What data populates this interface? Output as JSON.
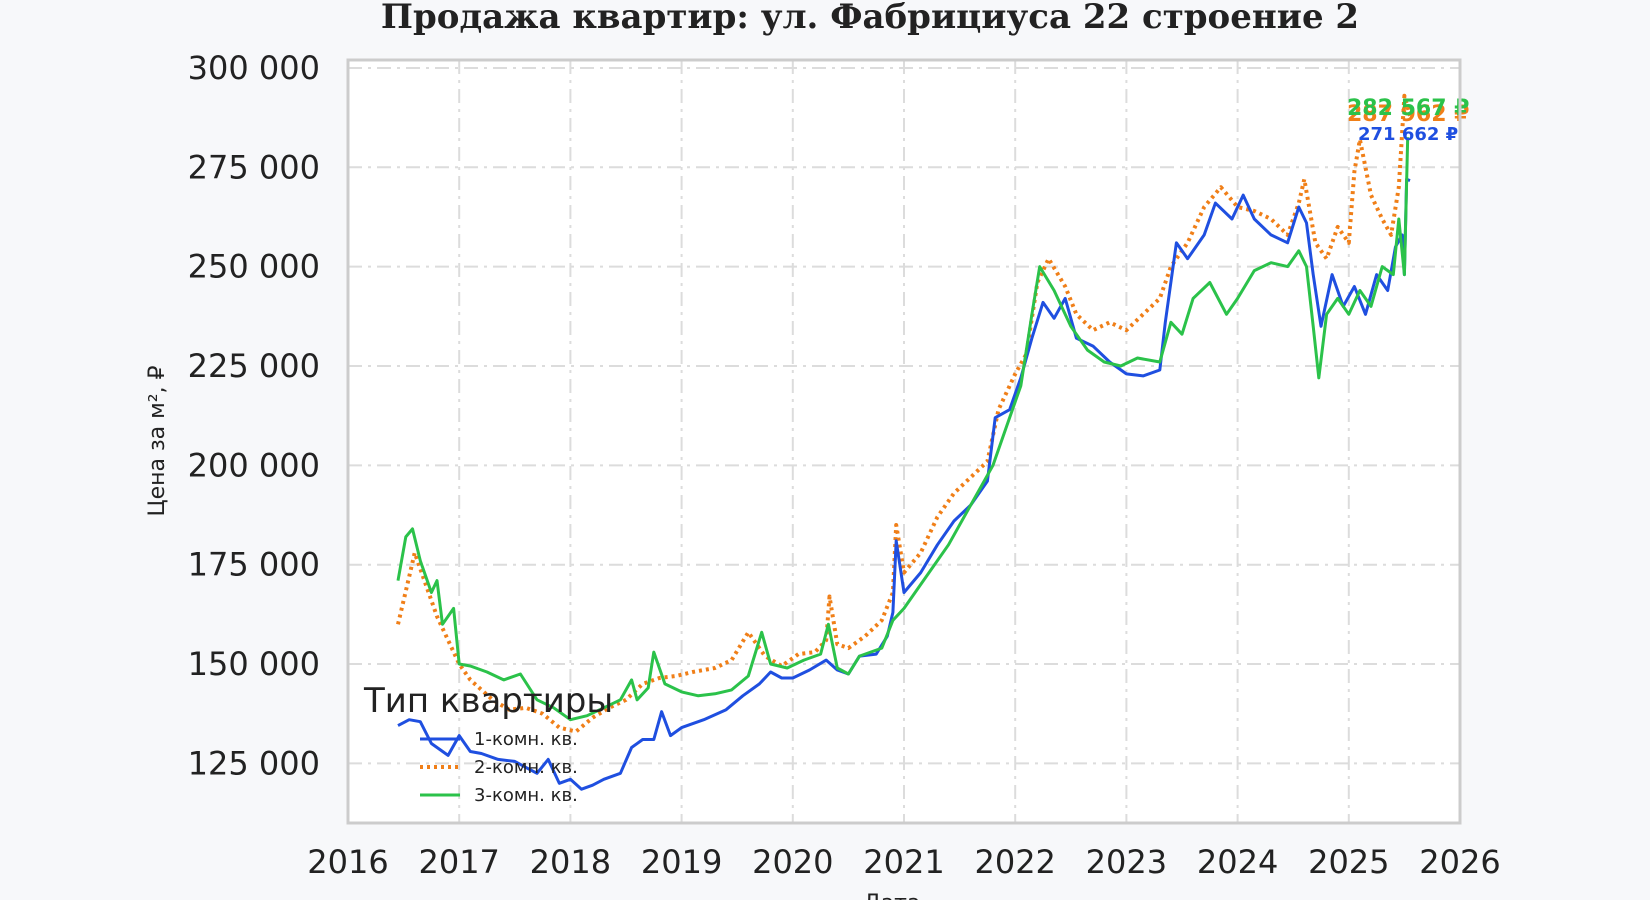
{
  "chart_data": {
    "type": "line",
    "title": "Продажа квартир: ул. Фабрициуса 22 строение 2",
    "xlabel": "Дата",
    "ylabel": "Цена за м², ₽",
    "xlim": [
      2016,
      2026
    ],
    "ylim": [
      110000,
      302000
    ],
    "x_ticks": [
      "2016",
      "2017",
      "2018",
      "2019",
      "2020",
      "2021",
      "2022",
      "2023",
      "2024",
      "2025",
      "2026"
    ],
    "y_ticks": [
      "125 000",
      "150 000",
      "175 000",
      "200 000",
      "225 000",
      "250 000",
      "275 000",
      "300 000"
    ],
    "grid": true,
    "legend": {
      "title": "Тип квартиры",
      "position": "lower-left",
      "entries": [
        "1-комн. кв.",
        "2-комн. кв.",
        "3-комн. кв."
      ]
    },
    "series": [
      {
        "name": "1-комн. кв.",
        "color": "#1f4fe0",
        "style": "solid",
        "end_label": "271 662 ₽",
        "points": [
          [
            2016.45,
            134500
          ],
          [
            2016.55,
            136000
          ],
          [
            2016.65,
            135500
          ],
          [
            2016.75,
            130000
          ],
          [
            2016.9,
            127000
          ],
          [
            2017.0,
            132000
          ],
          [
            2017.1,
            128000
          ],
          [
            2017.2,
            127500
          ],
          [
            2017.35,
            126000
          ],
          [
            2017.5,
            125500
          ],
          [
            2017.6,
            124000
          ],
          [
            2017.7,
            122500
          ],
          [
            2017.8,
            126000
          ],
          [
            2017.9,
            120000
          ],
          [
            2018.0,
            121000
          ],
          [
            2018.1,
            118500
          ],
          [
            2018.2,
            119500
          ],
          [
            2018.3,
            121000
          ],
          [
            2018.45,
            122500
          ],
          [
            2018.55,
            129000
          ],
          [
            2018.65,
            131000
          ],
          [
            2018.75,
            131000
          ],
          [
            2018.82,
            138000
          ],
          [
            2018.9,
            132000
          ],
          [
            2019.0,
            134000
          ],
          [
            2019.2,
            136000
          ],
          [
            2019.4,
            138500
          ],
          [
            2019.55,
            142000
          ],
          [
            2019.7,
            145000
          ],
          [
            2019.8,
            148000
          ],
          [
            2019.9,
            146500
          ],
          [
            2020.0,
            146500
          ],
          [
            2020.15,
            148500
          ],
          [
            2020.3,
            151000
          ],
          [
            2020.4,
            148500
          ],
          [
            2020.5,
            147500
          ],
          [
            2020.6,
            152000
          ],
          [
            2020.75,
            152500
          ],
          [
            2020.85,
            157000
          ],
          [
            2020.9,
            163000
          ],
          [
            2020.93,
            181000
          ],
          [
            2021.0,
            168000
          ],
          [
            2021.15,
            173000
          ],
          [
            2021.3,
            180000
          ],
          [
            2021.45,
            186000
          ],
          [
            2021.6,
            190000
          ],
          [
            2021.75,
            196000
          ],
          [
            2021.82,
            212000
          ],
          [
            2021.95,
            214000
          ],
          [
            2022.05,
            222000
          ],
          [
            2022.15,
            232000
          ],
          [
            2022.25,
            241000
          ],
          [
            2022.35,
            237000
          ],
          [
            2022.45,
            242000
          ],
          [
            2022.55,
            232000
          ],
          [
            2022.7,
            230000
          ],
          [
            2022.85,
            226000
          ],
          [
            2023.0,
            223000
          ],
          [
            2023.15,
            222500
          ],
          [
            2023.3,
            224000
          ],
          [
            2023.35,
            236000
          ],
          [
            2023.45,
            256000
          ],
          [
            2023.55,
            252000
          ],
          [
            2023.7,
            258000
          ],
          [
            2023.8,
            266000
          ],
          [
            2023.95,
            262000
          ],
          [
            2024.05,
            268000
          ],
          [
            2024.15,
            262000
          ],
          [
            2024.3,
            258000
          ],
          [
            2024.45,
            256000
          ],
          [
            2024.55,
            265000
          ],
          [
            2024.62,
            261000
          ],
          [
            2024.68,
            248000
          ],
          [
            2024.75,
            235000
          ],
          [
            2024.85,
            248000
          ],
          [
            2024.95,
            240000
          ],
          [
            2025.05,
            245000
          ],
          [
            2025.15,
            238000
          ],
          [
            2025.25,
            248000
          ],
          [
            2025.35,
            244000
          ],
          [
            2025.42,
            255000
          ],
          [
            2025.48,
            258000
          ],
          [
            2025.5,
            248000
          ],
          [
            2025.52,
            272000
          ],
          [
            2025.55,
            271662
          ]
        ]
      },
      {
        "name": "2-комн. кв.",
        "color": "#f07f18",
        "style": "dotted",
        "end_label": "287 962 ₽",
        "points": [
          [
            2016.45,
            160000
          ],
          [
            2016.55,
            172000
          ],
          [
            2016.6,
            178000
          ],
          [
            2016.7,
            170000
          ],
          [
            2016.8,
            162000
          ],
          [
            2016.9,
            156000
          ],
          [
            2017.0,
            150000
          ],
          [
            2017.1,
            146000
          ],
          [
            2017.3,
            141000
          ],
          [
            2017.45,
            138500
          ],
          [
            2017.6,
            139000
          ],
          [
            2017.75,
            137500
          ],
          [
            2017.9,
            134000
          ],
          [
            2018.05,
            133000
          ],
          [
            2018.2,
            136500
          ],
          [
            2018.35,
            139000
          ],
          [
            2018.5,
            141000
          ],
          [
            2018.65,
            145000
          ],
          [
            2018.8,
            146500
          ],
          [
            2018.95,
            147000
          ],
          [
            2019.1,
            148000
          ],
          [
            2019.3,
            149000
          ],
          [
            2019.45,
            151000
          ],
          [
            2019.6,
            158000
          ],
          [
            2019.75,
            152000
          ],
          [
            2019.9,
            149500
          ],
          [
            2020.05,
            152500
          ],
          [
            2020.2,
            153000
          ],
          [
            2020.3,
            156000
          ],
          [
            2020.33,
            167000
          ],
          [
            2020.4,
            155000
          ],
          [
            2020.5,
            154000
          ],
          [
            2020.65,
            157000
          ],
          [
            2020.8,
            161000
          ],
          [
            2020.9,
            168000
          ],
          [
            2020.93,
            185000
          ],
          [
            2021.0,
            173000
          ],
          [
            2021.15,
            178000
          ],
          [
            2021.3,
            187000
          ],
          [
            2021.45,
            193000
          ],
          [
            2021.6,
            197000
          ],
          [
            2021.75,
            201000
          ],
          [
            2021.85,
            214000
          ],
          [
            2022.0,
            223000
          ],
          [
            2022.1,
            228000
          ],
          [
            2022.2,
            246000
          ],
          [
            2022.3,
            252000
          ],
          [
            2022.45,
            245000
          ],
          [
            2022.55,
            238000
          ],
          [
            2022.7,
            234000
          ],
          [
            2022.85,
            236000
          ],
          [
            2023.0,
            234000
          ],
          [
            2023.15,
            238000
          ],
          [
            2023.3,
            242000
          ],
          [
            2023.4,
            250000
          ],
          [
            2023.55,
            256000
          ],
          [
            2023.7,
            265000
          ],
          [
            2023.85,
            270000
          ],
          [
            2024.0,
            265000
          ],
          [
            2024.15,
            264000
          ],
          [
            2024.3,
            262000
          ],
          [
            2024.45,
            258000
          ],
          [
            2024.55,
            266000
          ],
          [
            2024.6,
            272000
          ],
          [
            2024.7,
            256000
          ],
          [
            2024.8,
            252000
          ],
          [
            2024.9,
            260000
          ],
          [
            2025.0,
            256000
          ],
          [
            2025.05,
            274000
          ],
          [
            2025.1,
            282000
          ],
          [
            2025.2,
            268000
          ],
          [
            2025.3,
            262000
          ],
          [
            2025.38,
            258000
          ],
          [
            2025.45,
            270000
          ],
          [
            2025.5,
            293000
          ],
          [
            2025.55,
            287962
          ]
        ]
      },
      {
        "name": "3-комн. кв.",
        "color": "#2bc24a",
        "style": "solid",
        "end_label": "282 567 ₽",
        "points": [
          [
            2016.45,
            171000
          ],
          [
            2016.52,
            182000
          ],
          [
            2016.58,
            184000
          ],
          [
            2016.65,
            176000
          ],
          [
            2016.75,
            168000
          ],
          [
            2016.8,
            171000
          ],
          [
            2016.85,
            160000
          ],
          [
            2016.95,
            164000
          ],
          [
            2017.0,
            150000
          ],
          [
            2017.1,
            149500
          ],
          [
            2017.25,
            148000
          ],
          [
            2017.4,
            146000
          ],
          [
            2017.55,
            147500
          ],
          [
            2017.7,
            141000
          ],
          [
            2017.85,
            139000
          ],
          [
            2018.0,
            136000
          ],
          [
            2018.15,
            137000
          ],
          [
            2018.3,
            139000
          ],
          [
            2018.45,
            141000
          ],
          [
            2018.55,
            146000
          ],
          [
            2018.6,
            141000
          ],
          [
            2018.7,
            144000
          ],
          [
            2018.75,
            153000
          ],
          [
            2018.85,
            145000
          ],
          [
            2019.0,
            143000
          ],
          [
            2019.15,
            142000
          ],
          [
            2019.3,
            142500
          ],
          [
            2019.45,
            143500
          ],
          [
            2019.6,
            147000
          ],
          [
            2019.72,
            158000
          ],
          [
            2019.8,
            150000
          ],
          [
            2019.95,
            149000
          ],
          [
            2020.1,
            151000
          ],
          [
            2020.25,
            152500
          ],
          [
            2020.32,
            160000
          ],
          [
            2020.4,
            149000
          ],
          [
            2020.5,
            147500
          ],
          [
            2020.6,
            152000
          ],
          [
            2020.8,
            154000
          ],
          [
            2020.9,
            161000
          ],
          [
            2021.0,
            164000
          ],
          [
            2021.2,
            172000
          ],
          [
            2021.4,
            180000
          ],
          [
            2021.6,
            190000
          ],
          [
            2021.8,
            200000
          ],
          [
            2021.95,
            212000
          ],
          [
            2022.05,
            220000
          ],
          [
            2022.15,
            238000
          ],
          [
            2022.22,
            250000
          ],
          [
            2022.35,
            244000
          ],
          [
            2022.5,
            235000
          ],
          [
            2022.65,
            229000
          ],
          [
            2022.8,
            226000
          ],
          [
            2022.95,
            225000
          ],
          [
            2023.1,
            227000
          ],
          [
            2023.3,
            226000
          ],
          [
            2023.4,
            236000
          ],
          [
            2023.5,
            233000
          ],
          [
            2023.6,
            242000
          ],
          [
            2023.75,
            246000
          ],
          [
            2023.9,
            238000
          ],
          [
            2024.0,
            242000
          ],
          [
            2024.15,
            249000
          ],
          [
            2024.3,
            251000
          ],
          [
            2024.45,
            250000
          ],
          [
            2024.55,
            254000
          ],
          [
            2024.62,
            250000
          ],
          [
            2024.68,
            235000
          ],
          [
            2024.73,
            222000
          ],
          [
            2024.8,
            238000
          ],
          [
            2024.9,
            242000
          ],
          [
            2025.0,
            238000
          ],
          [
            2025.1,
            244000
          ],
          [
            2025.2,
            240000
          ],
          [
            2025.3,
            250000
          ],
          [
            2025.4,
            248000
          ],
          [
            2025.45,
            262000
          ],
          [
            2025.5,
            248000
          ],
          [
            2025.53,
            282567
          ]
        ]
      }
    ]
  }
}
